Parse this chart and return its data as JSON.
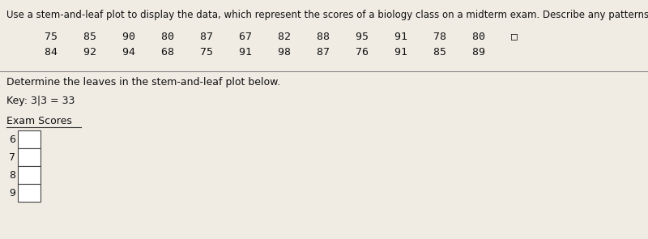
{
  "title": "Use a stem-and-leaf plot to display the data, which represent the scores of a biology class on a midterm exam. Describe any patterns.",
  "row1_str": "75    85    90    80    87    67    82    88    95    91    78    80",
  "row2_str": "84    92    94    68    75    91    98    87    76    91    85    89",
  "divider_text": "Determine the leaves in the stem-and-leaf plot below.",
  "key_text": "Key: 3|3 = 33",
  "plot_title": "Exam Scores",
  "stems": [
    "6",
    "7",
    "8",
    "9"
  ],
  "bg_color": "#f0ece4",
  "text_color": "#111111",
  "box_color": "#ffffff",
  "box_border": "#444444",
  "title_fontsize": 8.5,
  "body_fontsize": 9.5,
  "small_fontsize": 9.0
}
